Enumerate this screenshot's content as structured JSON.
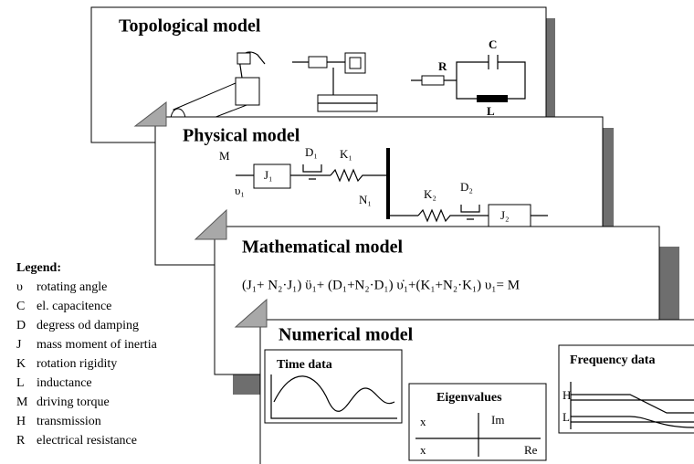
{
  "topological": {
    "title": "Topological model",
    "labels": [
      "R",
      "C",
      "L"
    ]
  },
  "physical": {
    "title": "Physical model",
    "labels": [
      "M",
      "J₁",
      "D₁",
      "K₁",
      "υ₁",
      "N₁",
      "K₂",
      "D₂",
      "J₂"
    ]
  },
  "mathematical": {
    "title": "Mathematical model",
    "equation": "(J₁+ N₂·J₁) ϋ₁+ (D₁+N₂·D₁) υ̇₁+(K₁+N₂·K₁) υ₁= M"
  },
  "numerical": {
    "title": "Numerical model",
    "time": {
      "title": "Time data"
    },
    "eigen": {
      "title": "Eigenvalues",
      "labels": [
        "x",
        "Im",
        "x",
        "Re"
      ]
    },
    "frequency": {
      "title": "Frequency data",
      "labels": [
        "H",
        "L"
      ]
    }
  },
  "legend": {
    "title": "Legend:",
    "items": [
      {
        "symbol": "υ",
        "text": "rotating angle"
      },
      {
        "symbol": "C",
        "text": "el. capacitence"
      },
      {
        "symbol": "D",
        "text": "degress od damping"
      },
      {
        "symbol": "J",
        "text": "mass moment of inertia"
      },
      {
        "symbol": "K",
        "text": "rotation rigidity"
      },
      {
        "symbol": "L",
        "text": "inductance"
      },
      {
        "symbol": "M",
        "text": "driving torque"
      },
      {
        "symbol": "H",
        "text": "transmission"
      },
      {
        "symbol": "R",
        "text": "electrical resistance"
      }
    ]
  }
}
